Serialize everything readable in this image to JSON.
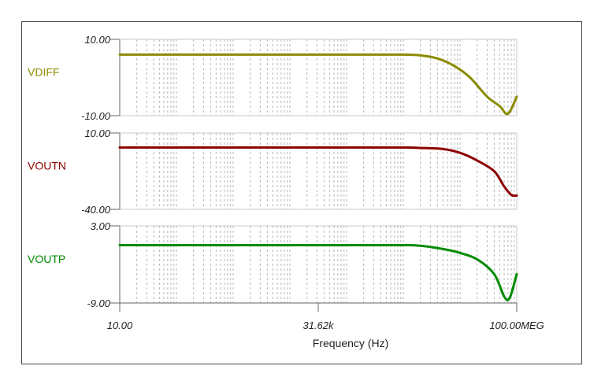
{
  "chart_data": {
    "type": "line",
    "x_scale": "log",
    "xlim": [
      10,
      100000000
    ],
    "x_tick_labels": [
      "10.00",
      "31.62k",
      "100.00MEG"
    ],
    "x_tick_values": [
      10,
      31620,
      100000000
    ],
    "xlabel": "Frequency (Hz)",
    "grid": true,
    "panels": [
      {
        "name": "VDIFF",
        "color": "#8b8b00",
        "ylim": [
          -10,
          10
        ],
        "y_tick_labels": [
          "10.00",
          "-10.00"
        ],
        "x": [
          10,
          1000,
          100000,
          1000000,
          2000000,
          4000000,
          8000000,
          15000000,
          30000000,
          50000000,
          70000000,
          100000000
        ],
        "y": [
          6.0,
          6.0,
          6.0,
          6.0,
          5.8,
          5.0,
          3.0,
          0.0,
          -5.0,
          -7.5,
          -9.5,
          -5.0
        ]
      },
      {
        "name": "VOUTN",
        "color": "#8b0000",
        "ylim": [
          -40,
          10
        ],
        "y_tick_labels": [
          "10.00",
          "-40.00"
        ],
        "x": [
          10,
          1000,
          100000,
          1000000,
          2000000,
          5000000,
          10000000,
          20000000,
          40000000,
          60000000,
          80000000,
          100000000
        ],
        "y": [
          0.5,
          0.5,
          0.5,
          0.5,
          0.2,
          -0.5,
          -3.0,
          -8.0,
          -15.0,
          -25.0,
          -30.5,
          -31.0
        ]
      },
      {
        "name": "VOUTP",
        "color": "#008b00",
        "ylim": [
          -9,
          3
        ],
        "y_tick_labels": [
          "3.00",
          "-9.00"
        ],
        "x": [
          10,
          1000,
          100000,
          1000000,
          2000000,
          5000000,
          10000000,
          20000000,
          40000000,
          60000000,
          75000000,
          100000000
        ],
        "y": [
          0.0,
          0.0,
          0.0,
          0.0,
          -0.1,
          -0.6,
          -1.2,
          -2.2,
          -4.5,
          -8.0,
          -8.2,
          -4.5
        ]
      }
    ]
  }
}
